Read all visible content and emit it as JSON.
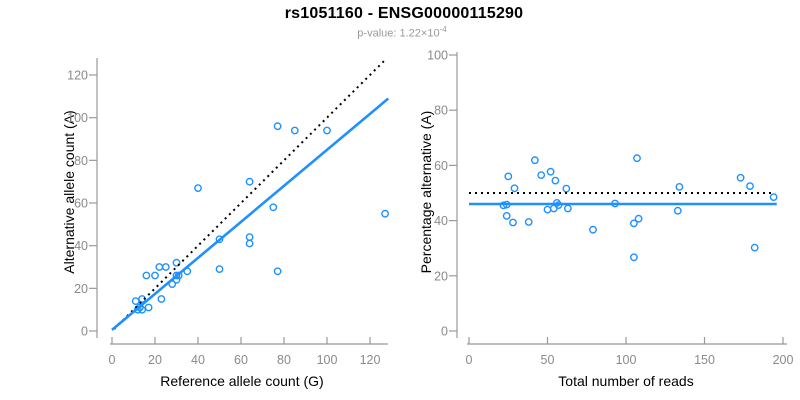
{
  "header": {
    "title": "rs1051160 - ENSG00000115290",
    "subtitle_prefix": "p-value: 1.22×10",
    "subtitle_exponent": "-4"
  },
  "colors": {
    "point_blue": "#1E90FF",
    "regression_blue": "#1E90FF",
    "reference_line_black": "#000000",
    "axis_gray": "#999999",
    "tick_label_gray": "#8a8a8a",
    "subtitle_gray": "#999999",
    "title_black": "#000000",
    "background": "#ffffff"
  },
  "chart_data": [
    {
      "id": "allele-counts-scatter",
      "type": "scatter",
      "marker": "open-circle",
      "xlabel": "Reference allele count (G)",
      "ylabel": "Alternative allele count (A)",
      "xlim": [
        0,
        128
      ],
      "ylim": [
        0,
        128
      ],
      "xticks": [
        0,
        20,
        40,
        60,
        80,
        100,
        120
      ],
      "yticks": [
        0,
        20,
        40,
        60,
        80,
        100,
        120
      ],
      "grid": false,
      "legend": "none",
      "points": [
        [
          11,
          14
        ],
        [
          12,
          10
        ],
        [
          13,
          11
        ],
        [
          14,
          10
        ],
        [
          14,
          15
        ],
        [
          16,
          26
        ],
        [
          17,
          11
        ],
        [
          20,
          26
        ],
        [
          22,
          30
        ],
        [
          23,
          15
        ],
        [
          25,
          30
        ],
        [
          28,
          22
        ],
        [
          30,
          24
        ],
        [
          30,
          26
        ],
        [
          30,
          32
        ],
        [
          31,
          26
        ],
        [
          35,
          28
        ],
        [
          40,
          67
        ],
        [
          50,
          29
        ],
        [
          50,
          43
        ],
        [
          64,
          41
        ],
        [
          64,
          44
        ],
        [
          64,
          70
        ],
        [
          75,
          58
        ],
        [
          77,
          28
        ],
        [
          77,
          96
        ],
        [
          85,
          94
        ],
        [
          100,
          94
        ],
        [
          127,
          55
        ]
      ],
      "lines": [
        {
          "name": "identity-line",
          "style": "dotted",
          "color": "#000000",
          "x1": 1,
          "y1": 1,
          "x2": 127.5,
          "y2": 127.5
        },
        {
          "name": "regression-line",
          "style": "solid",
          "color": "#1E90FF",
          "x1": 0,
          "y1": 0.5,
          "x2": 128.5,
          "y2": 109
        }
      ]
    },
    {
      "id": "percentage-vs-reads-scatter",
      "type": "scatter",
      "marker": "open-circle",
      "xlabel": "Total number of reads",
      "ylabel": "Percentage alternative (A)",
      "xlim": [
        0,
        200
      ],
      "ylim": [
        0,
        100
      ],
      "xticks": [
        0,
        50,
        100,
        150,
        200
      ],
      "yticks": [
        0,
        20,
        40,
        60,
        80,
        100
      ],
      "grid": false,
      "legend": "none",
      "points": [
        [
          25,
          56
        ],
        [
          22,
          45.5
        ],
        [
          24,
          45.8
        ],
        [
          24,
          41.7
        ],
        [
          29,
          51.7
        ],
        [
          42,
          61.9
        ],
        [
          28,
          39.3
        ],
        [
          46,
          56.5
        ],
        [
          52,
          57.7
        ],
        [
          38,
          39.5
        ],
        [
          55,
          54.5
        ],
        [
          50,
          44
        ],
        [
          54,
          44.4
        ],
        [
          56,
          46.4
        ],
        [
          62,
          51.6
        ],
        [
          57,
          45.6
        ],
        [
          63,
          44.4
        ],
        [
          107,
          62.6
        ],
        [
          79,
          36.7
        ],
        [
          93,
          46.2
        ],
        [
          105,
          39
        ],
        [
          108,
          40.7
        ],
        [
          134,
          52.2
        ],
        [
          133,
          43.6
        ],
        [
          105,
          26.7
        ],
        [
          173,
          55.5
        ],
        [
          179,
          52.5
        ],
        [
          194,
          48.5
        ],
        [
          182,
          30.2
        ]
      ],
      "lines": [
        {
          "name": "fifty-percent-line",
          "style": "dotted",
          "color": "#000000",
          "x1": 0,
          "y1": 50,
          "x2": 195,
          "y2": 50
        },
        {
          "name": "mean-percentage-line",
          "style": "solid",
          "color": "#1E90FF",
          "x1": 0,
          "y1": 46,
          "x2": 196,
          "y2": 46
        }
      ]
    }
  ]
}
